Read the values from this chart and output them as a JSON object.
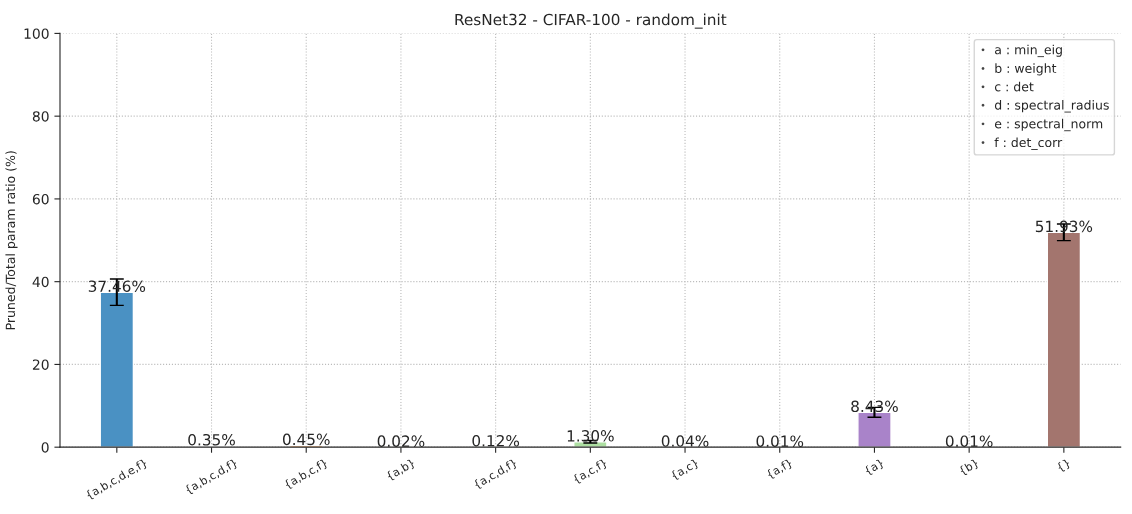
{
  "chart_data": {
    "type": "bar",
    "title": "ResNet32 - CIFAR-100 - random_init",
    "ylabel": "Pruned/Total param ratio (%)",
    "categories": [
      "{a,b,c,d,e,f}",
      "{a,b,c,d,f}",
      "{a,b,c,f}",
      "{a,b}",
      "{a,c,d,f}",
      "{a,c,f}",
      "{a,c}",
      "{a,f}",
      "{a}",
      "{b}",
      "{}"
    ],
    "values": [
      37.46,
      0.35,
      0.45,
      0.02,
      0.12,
      1.3,
      0.04,
      0.01,
      8.43,
      0.01,
      51.93
    ],
    "errors": [
      3.2,
      null,
      null,
      null,
      null,
      0.3,
      null,
      null,
      1.2,
      null,
      2.0
    ],
    "colors": [
      "#4a91c3",
      "#bdd2ec",
      "#ff9a40",
      "#ffc993",
      "#56b356",
      "#addfa2",
      "#de5253",
      "#ffacab",
      "#a983c9",
      "#d1c0dd",
      "#a3756e"
    ],
    "value_labels": [
      "37.46%",
      "0.35%",
      "0.45%",
      "0.02%",
      "0.12%",
      "1.30%",
      "0.04%",
      "0.01%",
      "8.43%",
      "0.01%",
      "51.93%"
    ],
    "ylim": [
      0,
      100
    ],
    "yticks": [
      0,
      20,
      40,
      60,
      80,
      100
    ],
    "grid": true,
    "line_style": "dotted",
    "annotations": [
      "a : min_eig",
      "b : weight",
      "c : det",
      "d : spectral_radius",
      "e : spectral_norm",
      "f : det_corr"
    ]
  }
}
